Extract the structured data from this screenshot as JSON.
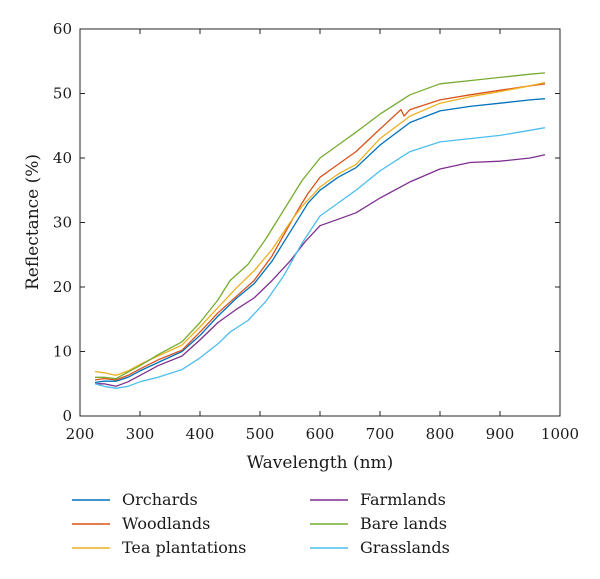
{
  "chart_data": {
    "type": "line",
    "title": "",
    "xlabel": "Wavelength (nm)",
    "ylabel": "Reflectance (%)",
    "xlim": [
      200,
      1000
    ],
    "ylim": [
      0,
      60
    ],
    "xticks": [
      200,
      300,
      400,
      500,
      600,
      700,
      800,
      900,
      1000
    ],
    "yticks": [
      0,
      10,
      20,
      30,
      40,
      50,
      60
    ],
    "grid": false,
    "legend_position": "bottom",
    "series": [
      {
        "name": "Orchards",
        "color": "#0072BD",
        "x": [
          225,
          240,
          260,
          280,
          300,
          330,
          370,
          400,
          430,
          460,
          490,
          520,
          550,
          570,
          580,
          600,
          630,
          660,
          700,
          750,
          800,
          850,
          900,
          950,
          975
        ],
        "y": [
          5.2,
          5.4,
          5.4,
          6.0,
          7.0,
          8.3,
          10.0,
          12.5,
          15.5,
          18.2,
          20.5,
          24.0,
          28.5,
          31.5,
          33.0,
          35.0,
          37.0,
          38.5,
          42.0,
          45.5,
          47.3,
          48.0,
          48.5,
          49.0,
          49.2
        ]
      },
      {
        "name": "Woodlands",
        "color": "#D95319",
        "x": [
          225,
          240,
          260,
          280,
          300,
          330,
          370,
          400,
          430,
          460,
          490,
          520,
          550,
          570,
          580,
          600,
          630,
          660,
          700,
          735,
          740,
          750,
          800,
          850,
          900,
          950,
          975
        ],
        "y": [
          5.6,
          5.8,
          5.6,
          6.3,
          7.3,
          8.7,
          10.2,
          13.0,
          16.0,
          18.5,
          21.0,
          24.8,
          29.8,
          33.0,
          34.5,
          37.0,
          39.0,
          41.0,
          44.5,
          47.5,
          46.5,
          47.5,
          49.0,
          49.8,
          50.5,
          51.2,
          51.5
        ]
      },
      {
        "name": "Tea plantations",
        "color": "#EDB120",
        "x": [
          225,
          240,
          260,
          280,
          300,
          330,
          370,
          400,
          430,
          460,
          490,
          520,
          550,
          570,
          580,
          600,
          630,
          660,
          700,
          750,
          800,
          850,
          900,
          950,
          975
        ],
        "y": [
          6.9,
          6.7,
          6.3,
          7.0,
          8.0,
          9.3,
          11.0,
          13.8,
          16.8,
          19.8,
          22.5,
          25.8,
          30.0,
          32.5,
          33.5,
          35.5,
          37.5,
          39.0,
          43.0,
          46.5,
          48.5,
          49.5,
          50.3,
          51.2,
          51.7
        ]
      },
      {
        "name": "Farmlands",
        "color": "#7E2F8E",
        "x": [
          225,
          240,
          260,
          280,
          300,
          330,
          370,
          400,
          430,
          460,
          490,
          520,
          550,
          575,
          590,
          600,
          630,
          660,
          700,
          750,
          800,
          850,
          900,
          950,
          975
        ],
        "y": [
          5.0,
          5.0,
          4.6,
          5.3,
          6.3,
          7.8,
          9.3,
          11.8,
          14.5,
          16.5,
          18.3,
          21.0,
          24.0,
          27.0,
          28.5,
          29.5,
          30.5,
          31.5,
          33.8,
          36.3,
          38.3,
          39.3,
          39.5,
          40.0,
          40.5
        ]
      },
      {
        "name": "Bare lands",
        "color": "#77AC30",
        "x": [
          225,
          240,
          260,
          280,
          300,
          330,
          370,
          400,
          430,
          450,
          480,
          510,
          540,
          570,
          600,
          630,
          660,
          700,
          750,
          800,
          850,
          900,
          950,
          975
        ],
        "y": [
          6.0,
          6.0,
          5.8,
          6.8,
          7.8,
          9.5,
          11.5,
          14.5,
          18.0,
          21.0,
          23.5,
          27.5,
          32.0,
          36.5,
          40.0,
          42.0,
          44.0,
          46.8,
          49.8,
          51.5,
          52.0,
          52.5,
          53.0,
          53.2
        ]
      },
      {
        "name": "Grasslands",
        "color": "#4DBEEE",
        "x": [
          225,
          240,
          260,
          280,
          300,
          330,
          370,
          400,
          430,
          450,
          480,
          510,
          540,
          570,
          600,
          630,
          660,
          700,
          750,
          800,
          850,
          900,
          950,
          975
        ],
        "y": [
          5.0,
          4.6,
          4.3,
          4.6,
          5.3,
          6.0,
          7.2,
          9.0,
          11.2,
          13.0,
          14.8,
          17.8,
          21.8,
          26.8,
          31.0,
          33.0,
          35.0,
          38.0,
          41.0,
          42.5,
          43.0,
          43.5,
          44.3,
          44.7
        ]
      }
    ]
  }
}
